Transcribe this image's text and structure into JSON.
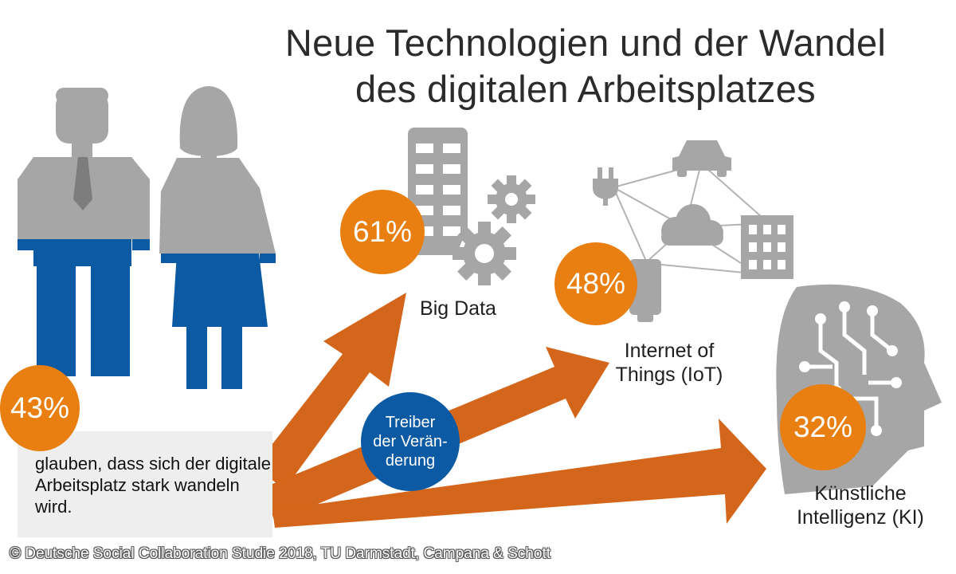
{
  "title": {
    "line1": "Neue Technologien und der Wandel",
    "line2": "des digitalen Arbeitsplatzes"
  },
  "statement": {
    "value": "43%",
    "text": "glauben, dass sich der digitale Arbeitsplatz stark wandeln wird."
  },
  "driver": {
    "line1": "Treiber",
    "line2": "der Verän-",
    "line3": "derung"
  },
  "technologies": [
    {
      "value": "61%",
      "label": "Big Data",
      "icon": "server-gears-icon"
    },
    {
      "value": "48%",
      "label": "Internet of Things (IoT)",
      "icon": "network-cloud-icon"
    },
    {
      "value": "32%",
      "label": "Künstliche Intelligenz (KI)",
      "icon": "circuit-head-icon"
    }
  ],
  "source": "© Deutsche Social Collaboration Studie 2018, TU Darmstadt, Campana & Schott",
  "colors": {
    "orange": "#e87f10",
    "arrow": "#d4661b",
    "blue": "#0c5aa4",
    "grey": "#a6a6a6"
  },
  "chart_data": {
    "type": "bar",
    "title": "Neue Technologien und der Wandel des digitalen Arbeitsplatzes",
    "categories": [
      "Big Data",
      "Internet of Things (IoT)",
      "Künstliche Intelligenz (KI)"
    ],
    "values": [
      61,
      48,
      32
    ],
    "unit": "%",
    "extra": {
      "label": "glauben, dass sich der digitale Arbeitsplatz stark wandeln wird.",
      "value": 43
    }
  }
}
